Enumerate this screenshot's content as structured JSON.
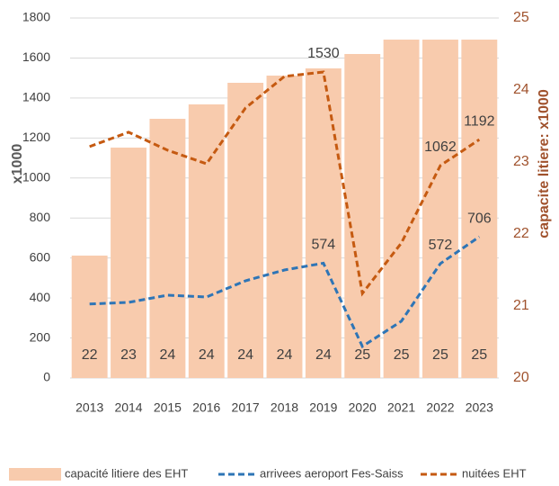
{
  "chart_data": {
    "type": "combo",
    "y_label": "x1000",
    "y2_label": "capacite litiere: x1000",
    "categories": [
      "2013",
      "2014",
      "2015",
      "2016",
      "2017",
      "2018",
      "2019",
      "2020",
      "2021",
      "2022",
      "2023"
    ],
    "ylim": [
      0,
      1800
    ],
    "yticks": [
      0,
      200,
      400,
      600,
      800,
      1000,
      1200,
      1400,
      1600,
      1800
    ],
    "y2lim": [
      20,
      25
    ],
    "y2ticks": [
      20,
      21,
      22,
      23,
      24,
      25
    ],
    "grid": true,
    "legend": "bottom",
    "series": [
      {
        "name": "capacité litiere des EHT",
        "type": "bar",
        "axis": "y2",
        "color": "#f8cbad",
        "values": [
          21.7,
          23.2,
          23.6,
          23.8,
          24.1,
          24.2,
          24.3,
          24.5,
          24.7,
          24.7,
          24.7
        ],
        "value_labels": [
          "22",
          "23",
          "24",
          "24",
          "24",
          "24",
          "24",
          "25",
          "25",
          "25",
          "25"
        ]
      },
      {
        "name": "arrivees aeroport Fes-Saiss",
        "type": "line",
        "color": "#2e75b6",
        "values": [
          370,
          378,
          414,
          405,
          486,
          540,
          574,
          158,
          284,
          572,
          706
        ],
        "value_labels": [
          null,
          null,
          null,
          null,
          null,
          null,
          "574",
          null,
          null,
          "572",
          "706"
        ]
      },
      {
        "name": "nuitées EHT",
        "type": "line",
        "color": "#c55a11",
        "values": [
          1157,
          1229,
          1139,
          1071,
          1350,
          1508,
          1530,
          423,
          675,
          1062,
          1192
        ],
        "value_labels": [
          null,
          null,
          null,
          null,
          null,
          null,
          "1530",
          null,
          null,
          "1062",
          "1192"
        ]
      }
    ]
  }
}
